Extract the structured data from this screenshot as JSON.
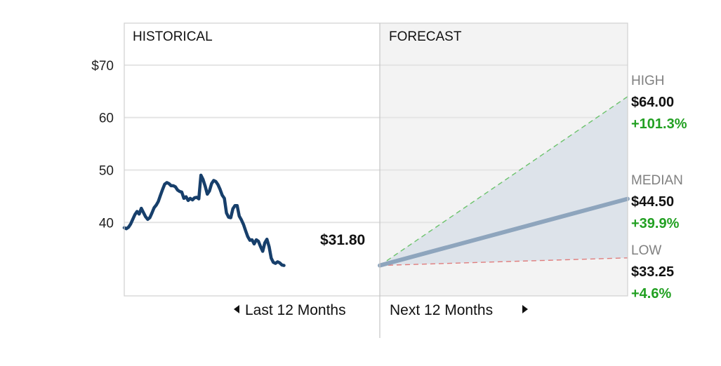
{
  "chart_data": {
    "type": "line",
    "panels": {
      "historical_title": "HISTORICAL",
      "forecast_title": "FORECAST"
    },
    "y_axis": {
      "ylim": [
        26,
        78
      ],
      "ticks": [
        {
          "value": 70,
          "label": "$70"
        },
        {
          "value": 60,
          "label": "60"
        },
        {
          "value": 50,
          "label": "50"
        },
        {
          "value": 40,
          "label": "40"
        }
      ]
    },
    "historical": {
      "x_range": [
        0,
        12
      ],
      "series": [
        [
          0.0,
          39.0
        ],
        [
          0.1,
          38.8
        ],
        [
          0.2,
          39.1
        ],
        [
          0.3,
          39.7
        ],
        [
          0.4,
          40.6
        ],
        [
          0.5,
          41.5
        ],
        [
          0.6,
          42.1
        ],
        [
          0.7,
          41.6
        ],
        [
          0.8,
          42.7
        ],
        [
          0.9,
          41.9
        ],
        [
          1.0,
          41.1
        ],
        [
          1.1,
          40.6
        ],
        [
          1.2,
          40.9
        ],
        [
          1.3,
          41.8
        ],
        [
          1.4,
          42.8
        ],
        [
          1.5,
          43.3
        ],
        [
          1.6,
          44.0
        ],
        [
          1.7,
          45.2
        ],
        [
          1.8,
          46.3
        ],
        [
          1.9,
          47.3
        ],
        [
          2.0,
          47.6
        ],
        [
          2.1,
          47.4
        ],
        [
          2.2,
          47.0
        ],
        [
          2.3,
          47.0
        ],
        [
          2.4,
          46.8
        ],
        [
          2.5,
          46.2
        ],
        [
          2.6,
          45.9
        ],
        [
          2.7,
          45.8
        ],
        [
          2.8,
          44.6
        ],
        [
          2.9,
          44.9
        ],
        [
          3.0,
          44.2
        ],
        [
          3.1,
          44.6
        ],
        [
          3.2,
          44.3
        ],
        [
          3.3,
          44.7
        ],
        [
          3.4,
          44.8
        ],
        [
          3.5,
          44.5
        ],
        [
          3.6,
          49.0
        ],
        [
          3.7,
          48.2
        ],
        [
          3.8,
          46.9
        ],
        [
          3.9,
          45.4
        ],
        [
          4.0,
          46.0
        ],
        [
          4.1,
          47.4
        ],
        [
          4.2,
          48.0
        ],
        [
          4.3,
          47.8
        ],
        [
          4.4,
          47.2
        ],
        [
          4.5,
          46.3
        ],
        [
          4.6,
          45.2
        ],
        [
          4.7,
          44.6
        ],
        [
          4.8,
          41.8
        ],
        [
          4.9,
          41.0
        ],
        [
          5.0,
          40.9
        ],
        [
          5.1,
          42.6
        ],
        [
          5.2,
          43.2
        ],
        [
          5.3,
          43.2
        ],
        [
          5.4,
          41.2
        ],
        [
          5.5,
          40.5
        ],
        [
          5.6,
          39.6
        ],
        [
          5.7,
          38.4
        ],
        [
          5.8,
          37.3
        ],
        [
          5.9,
          36.6
        ],
        [
          6.0,
          36.7
        ],
        [
          6.1,
          35.9
        ],
        [
          6.2,
          36.7
        ],
        [
          6.3,
          36.4
        ],
        [
          6.4,
          35.4
        ],
        [
          6.5,
          34.5
        ],
        [
          6.6,
          36.1
        ],
        [
          6.7,
          36.8
        ],
        [
          6.8,
          35.4
        ],
        [
          6.9,
          33.2
        ],
        [
          7.0,
          32.4
        ],
        [
          7.1,
          32.2
        ],
        [
          7.2,
          32.5
        ],
        [
          7.3,
          32.3
        ],
        [
          7.4,
          31.9
        ],
        [
          7.5,
          31.8
        ]
      ],
      "current_price_label": "$31.80",
      "current_price": 31.8
    },
    "forecast": {
      "x_range": [
        0,
        12
      ],
      "start_value": 31.8,
      "high": {
        "name": "HIGH",
        "value": 64.0,
        "price_label": "$64.00",
        "change_label": "+101.3%"
      },
      "median": {
        "name": "MEDIAN",
        "value": 44.5,
        "price_label": "$44.50",
        "change_label": "+39.9%"
      },
      "low": {
        "name": "LOW",
        "value": 33.25,
        "price_label": "$33.25",
        "change_label": "+4.6%"
      }
    },
    "nav": {
      "prev_label": "Last 12 Months",
      "next_label": "Next 12 Months"
    },
    "grid": true,
    "colors": {
      "historical_line": "#173f6b",
      "median_line": "#8ea5bd",
      "high_line": "#6cc36c",
      "low_line": "#e07c7c",
      "forecast_band": "#dde3ea",
      "forecast_background": "#f3f3f3",
      "grid": "#e4e4e4",
      "positive_change": "#22a022"
    }
  }
}
